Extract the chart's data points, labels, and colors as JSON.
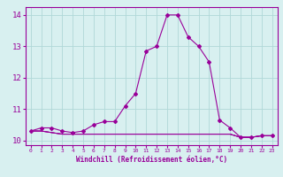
{
  "x": [
    0,
    1,
    2,
    3,
    4,
    5,
    6,
    7,
    8,
    9,
    10,
    11,
    12,
    13,
    14,
    15,
    16,
    17,
    18,
    19,
    20,
    21,
    22,
    23
  ],
  "line1": [
    10.3,
    10.4,
    10.4,
    10.3,
    10.25,
    10.3,
    10.5,
    10.6,
    10.6,
    11.1,
    11.5,
    12.85,
    13.0,
    14.0,
    14.0,
    13.3,
    13.0,
    12.5,
    10.65,
    10.4,
    10.1,
    10.1,
    10.15,
    10.15
  ],
  "line2": [
    10.3,
    10.3,
    10.25,
    10.2,
    10.2,
    10.2,
    10.2,
    10.2,
    10.2,
    10.2,
    10.2,
    10.2,
    10.2,
    10.2,
    10.2,
    10.2,
    10.2,
    10.2,
    10.2,
    10.2,
    10.1,
    10.1,
    10.15,
    10.15
  ],
  "line3": [
    10.3,
    10.3,
    10.25,
    10.2,
    10.2,
    10.2,
    10.2,
    10.2,
    10.2,
    10.2,
    10.2,
    10.2,
    10.2,
    10.2,
    10.2,
    10.2,
    10.2,
    10.2,
    10.2,
    10.2,
    10.1,
    10.1,
    10.15,
    10.15
  ],
  "line4": [
    10.3,
    10.3,
    10.25,
    10.2,
    10.2,
    10.2,
    10.2,
    10.2,
    10.2,
    10.2,
    10.2,
    10.2,
    10.2,
    10.2,
    10.2,
    10.2,
    10.2,
    10.2,
    10.2,
    10.2,
    10.1,
    10.1,
    10.15,
    10.15
  ],
  "color": "#990099",
  "bg_color": "#d8f0f0",
  "grid_color": "#b0d8d8",
  "xlabel": "Windchill (Refroidissement éolien,°C)",
  "ylim": [
    9.85,
    14.25
  ],
  "xlim": [
    -0.5,
    23.5
  ],
  "yticks": [
    10,
    11,
    12,
    13,
    14
  ],
  "xticks": [
    0,
    1,
    2,
    3,
    4,
    5,
    6,
    7,
    8,
    9,
    10,
    11,
    12,
    13,
    14,
    15,
    16,
    17,
    18,
    19,
    20,
    21,
    22,
    23
  ]
}
